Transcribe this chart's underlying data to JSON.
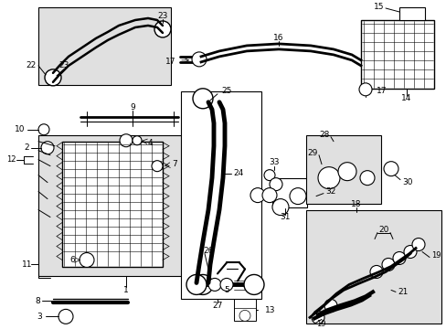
{
  "bg_color": "#ffffff",
  "line_color": "#000000",
  "box_fill": "#e0e0e0",
  "fig_width": 4.89,
  "fig_height": 3.6,
  "dpi": 100
}
